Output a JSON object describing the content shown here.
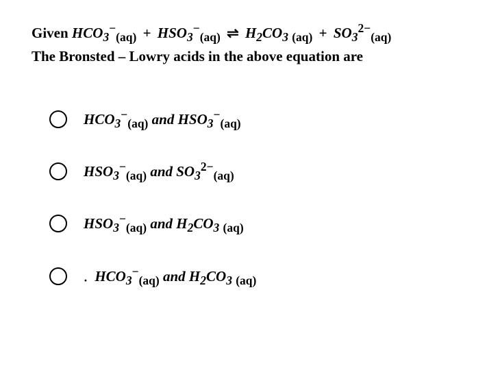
{
  "stem": {
    "given_word": "Given",
    "r1_species": "HCO",
    "r1_mainsub": "3",
    "r1_charge": "−",
    "r1_phase": "(aq)",
    "plus1": "+",
    "r2_species": "HSO",
    "r2_mainsub": "3",
    "r2_charge": "−",
    "r2_phase": "(aq)",
    "arrows": "⇌",
    "p1_species": "H",
    "p1_sub1": "2",
    "p1_C": "CO",
    "p1_sub2": "3",
    "p1_phase": "(aq)",
    "plus2": "+",
    "p2_species": "SO",
    "p2_mainsub": "3",
    "p2_charge": "2−",
    "p2_phase": "(aq)",
    "line2": "The Bronsted – Lowry acids in the above equation are"
  },
  "optA": {
    "s1": "HCO",
    "s1sub": "3",
    "s1chg": "−",
    "s1ph": "(aq)",
    "and": "and",
    "s2": "HSO",
    "s2sub": "3",
    "s2chg": "−",
    "s2ph": "(aq)"
  },
  "optB": {
    "s1": "HSO",
    "s1sub": "3",
    "s1chg": "−",
    "s1ph": "(aq)",
    "and": "and",
    "s2": "SO",
    "s2sub": "3",
    "s2chg": "2−",
    "s2ph": "(aq)"
  },
  "optC": {
    "s1": "HSO",
    "s1sub": "3",
    "s1chg": "−",
    "s1ph": "(aq)",
    "and": "and",
    "s2h": "H",
    "s2hsub": "2",
    "s2": "CO",
    "s2sub": "3",
    "s2ph": "(aq)"
  },
  "optD": {
    "dot": "·",
    "s1": "HCO",
    "s1sub": "3",
    "s1chg": "−",
    "s1ph": "(aq)",
    "and": "and",
    "s2h": "H",
    "s2hsub": "2",
    "s2": "CO",
    "s2sub": "3",
    "s2ph": "(aq)"
  }
}
